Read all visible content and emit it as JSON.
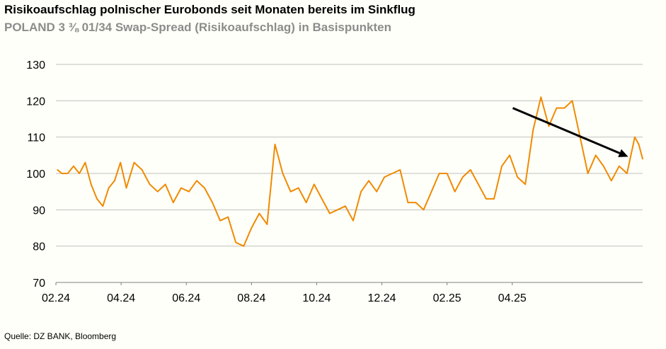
{
  "header": {
    "title": "Risikoaufschlag polnischer Eurobonds seit Monaten bereits im Sinkflug",
    "subtitle": "POLAND 3 ⅜ 01/34 Swap-Spread (Risikoaufschlag) in Basispunkten"
  },
  "footer": {
    "source": "Quelle: DZ BANK, Bloomberg"
  },
  "colors": {
    "series": "#f08a00",
    "grid": "#bfbfbf",
    "axis": "#7f7f7f",
    "arrow": "#000000"
  },
  "chart_data": {
    "type": "line",
    "title": "",
    "xlabel": "",
    "ylabel": "",
    "ylim": [
      70,
      130
    ],
    "yticks": [
      "130",
      "120",
      "110",
      "100",
      "90",
      "80",
      "70"
    ],
    "xtick_labels": [
      "02.24",
      "04.24",
      "06.24",
      "08.24",
      "10.24",
      "12.24",
      "02.25",
      "04.25"
    ],
    "grid": true,
    "legend": "none",
    "annotations": [
      {
        "type": "arrow",
        "meaning": "downtrend",
        "from": {
          "x": 1.168,
          "y": 118.0
        },
        "to": {
          "x": 1.463,
          "y": 104.6
        }
      }
    ],
    "series": [
      {
        "x": [
          0.004,
          0.015,
          0.03,
          0.045,
          0.06,
          0.075,
          0.09,
          0.105,
          0.12,
          0.135,
          0.15,
          0.165,
          0.18,
          0.2,
          0.22,
          0.24,
          0.26,
          0.28,
          0.3,
          0.32,
          0.34,
          0.36,
          0.38,
          0.4,
          0.42,
          0.44,
          0.46,
          0.48,
          0.5,
          0.52,
          0.54,
          0.56,
          0.58,
          0.6,
          0.62,
          0.64,
          0.66,
          0.68,
          0.7,
          0.72,
          0.74,
          0.76,
          0.78,
          0.8,
          0.82,
          0.84,
          0.86,
          0.88,
          0.9,
          0.92,
          0.94,
          0.96,
          0.98,
          1.0,
          1.02,
          1.04,
          1.06,
          1.08,
          1.1,
          1.12,
          1.14,
          1.16,
          1.18,
          1.2,
          1.22,
          1.24,
          1.26,
          1.28,
          1.3,
          1.32,
          1.34,
          1.36,
          1.38,
          1.4,
          1.42,
          1.44,
          1.46,
          1.48,
          1.49,
          1.5
        ],
        "values": [
          101,
          100,
          100,
          102,
          100,
          103,
          97,
          93,
          91,
          96,
          98,
          103,
          96,
          103,
          101,
          97,
          95,
          97,
          92,
          96,
          95,
          98,
          96,
          92,
          87,
          88,
          81,
          80,
          85,
          89,
          86,
          108,
          100,
          95,
          96,
          92,
          97,
          93,
          89,
          90,
          91,
          87,
          95,
          98,
          95,
          99,
          100,
          101,
          92,
          92,
          90,
          95,
          100,
          100,
          95,
          99,
          101,
          97,
          93,
          93,
          102,
          105,
          99,
          97,
          112,
          121,
          113,
          118,
          118,
          120,
          110,
          100,
          105,
          102,
          98,
          102,
          100,
          110,
          108,
          104
        ]
      }
    ]
  }
}
